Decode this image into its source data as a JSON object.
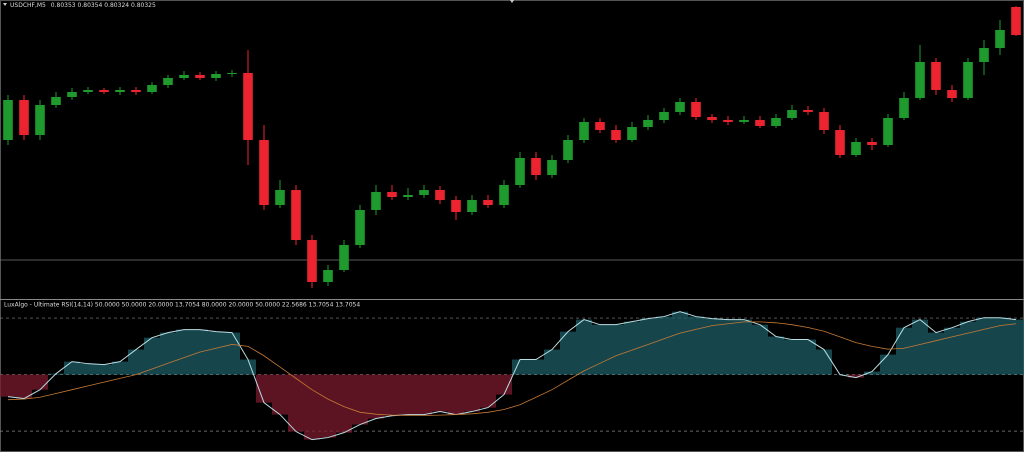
{
  "chart_data": [
    {
      "type": "candlestick",
      "title": "USDCHF,M5",
      "open": [
        0.8022,
        0.8026,
        0.80225,
        0.80255,
        0.80263,
        0.80268,
        0.8027,
        0.80268,
        0.8027,
        0.80268,
        0.80275,
        0.80282,
        0.80285,
        0.80282,
        0.80286,
        0.80287,
        0.8022,
        0.80155,
        0.8017,
        0.8012,
        0.80078,
        0.8009,
        0.80115,
        0.8015,
        0.80168,
        0.80163,
        0.80165,
        0.8017,
        0.8016,
        0.80148,
        0.8016,
        0.80155,
        0.80175,
        0.80202,
        0.80185,
        0.802,
        0.8022,
        0.80238,
        0.8023,
        0.8022,
        0.80233,
        0.8024,
        0.80248,
        0.80258,
        0.80243,
        0.8024,
        0.80238,
        0.8024,
        0.80234,
        0.80242,
        0.8025,
        0.80248,
        0.8023,
        0.80205,
        0.80218,
        0.80215,
        0.80242,
        0.80262,
        0.80298,
        0.8027,
        0.80262,
        0.80298,
        0.80312,
        0.80353
      ],
      "high": [
        0.80265,
        0.80265,
        0.8026,
        0.80268,
        0.80272,
        0.80273,
        0.80272,
        0.80273,
        0.80273,
        0.80278,
        0.80285,
        0.80289,
        0.80288,
        0.80289,
        0.8029,
        0.8031,
        0.80235,
        0.8018,
        0.80175,
        0.80125,
        0.80095,
        0.8012,
        0.80155,
        0.80175,
        0.80175,
        0.80172,
        0.80175,
        0.80174,
        0.80164,
        0.80165,
        0.80165,
        0.8018,
        0.80208,
        0.80208,
        0.80205,
        0.80225,
        0.80242,
        0.80242,
        0.80235,
        0.80238,
        0.80245,
        0.80252,
        0.80262,
        0.80262,
        0.80246,
        0.80244,
        0.80244,
        0.80244,
        0.80246,
        0.80255,
        0.80254,
        0.80252,
        0.80235,
        0.80222,
        0.80222,
        0.80246,
        0.80268,
        0.80315,
        0.80302,
        0.80275,
        0.80302,
        0.8032,
        0.8034,
        0.80354
      ],
      "low": [
        0.80215,
        0.8022,
        0.8022,
        0.80252,
        0.8026,
        0.80266,
        0.80266,
        0.80265,
        0.80265,
        0.80266,
        0.80272,
        0.8028,
        0.8028,
        0.80279,
        0.80283,
        0.80195,
        0.8015,
        0.80152,
        0.80115,
        0.80072,
        0.80074,
        0.80088,
        0.80112,
        0.80145,
        0.8016,
        0.8016,
        0.80162,
        0.80156,
        0.8014,
        0.80145,
        0.80152,
        0.80152,
        0.80172,
        0.8018,
        0.80182,
        0.80197,
        0.80217,
        0.80227,
        0.80217,
        0.80218,
        0.8023,
        0.80237,
        0.80245,
        0.8024,
        0.80237,
        0.80235,
        0.80236,
        0.80232,
        0.80232,
        0.8024,
        0.80245,
        0.80226,
        0.80202,
        0.80203,
        0.8021,
        0.80213,
        0.8024,
        0.8026,
        0.80265,
        0.80258,
        0.8026,
        0.80285,
        0.80305,
        0.80324
      ],
      "close": [
        0.8026,
        0.80225,
        0.80255,
        0.80263,
        0.80268,
        0.8027,
        0.80268,
        0.8027,
        0.80268,
        0.80275,
        0.80282,
        0.80285,
        0.80282,
        0.80286,
        0.80287,
        0.8022,
        0.80155,
        0.8017,
        0.8012,
        0.80078,
        0.8009,
        0.80115,
        0.8015,
        0.80168,
        0.80163,
        0.80165,
        0.8017,
        0.8016,
        0.80148,
        0.8016,
        0.80155,
        0.80175,
        0.80202,
        0.80185,
        0.802,
        0.8022,
        0.80238,
        0.8023,
        0.8022,
        0.80233,
        0.8024,
        0.80248,
        0.80258,
        0.80243,
        0.8024,
        0.80238,
        0.8024,
        0.80234,
        0.80242,
        0.8025,
        0.80248,
        0.8023,
        0.80205,
        0.80218,
        0.80215,
        0.80242,
        0.80262,
        0.80298,
        0.8027,
        0.80262,
        0.80298,
        0.80312,
        0.8033,
        0.80325
      ],
      "ylim": [
        0.80062,
        0.8036
      ],
      "up_color": "#1f9a2c",
      "down_color": "#ec2430",
      "price_line": 0.801
    },
    {
      "type": "line",
      "title": "LuxAlgo - Ultimate RSI(14,14) 50.0000 50.0000 20.0000 13.7054 80.0000 20.0000 50.0000 22.5686 13.7054 13.7054",
      "series": [
        {
          "color": "#b8dde4",
          "values": [
            38.3,
            37.3,
            42.0,
            50.5,
            56.9,
            55.8,
            55.3,
            56.9,
            63.3,
            69.6,
            72.3,
            73.9,
            73.9,
            72.8,
            72.3,
            58.0,
            35.1,
            28.8,
            19.8,
            15.5,
            16.6,
            19.2,
            23.5,
            26.7,
            28.2,
            28.8,
            28.8,
            30.4,
            28.8,
            30.4,
            32.5,
            39.4,
            58.0,
            58.0,
            63.3,
            72.8,
            79.2,
            76.5,
            76.5,
            78.1,
            79.7,
            80.8,
            83.4,
            80.8,
            79.7,
            79.2,
            79.2,
            76.5,
            70.2,
            68.6,
            68.6,
            63.3,
            50.0,
            48.4,
            51.6,
            60.6,
            74.9,
            79.2,
            72.3,
            74.9,
            78.1,
            80.2,
            80.2,
            79.2
          ]
        },
        {
          "color": "#c67a35",
          "values": [
            36.7,
            37,
            38,
            40,
            42,
            44,
            46,
            48,
            50,
            53,
            56,
            59,
            62,
            64,
            66,
            65,
            60,
            54,
            48,
            42,
            37,
            33,
            30,
            29,
            28.5,
            28.3,
            28.3,
            28.5,
            28.8,
            29.2,
            30,
            31.5,
            34,
            38,
            42,
            47,
            52,
            56,
            60,
            63,
            66,
            69,
            72,
            74,
            76,
            77,
            78,
            78,
            77.5,
            76.5,
            75,
            73,
            70,
            67,
            65,
            63.5,
            64,
            66,
            68,
            70,
            72,
            74,
            76,
            77
          ]
        }
      ],
      "ylim": [
        10,
        88
      ],
      "levels": [
        20,
        50,
        80
      ],
      "up_color": "#1d5d66",
      "down_color": "#7c1b2e"
    }
  ]
}
